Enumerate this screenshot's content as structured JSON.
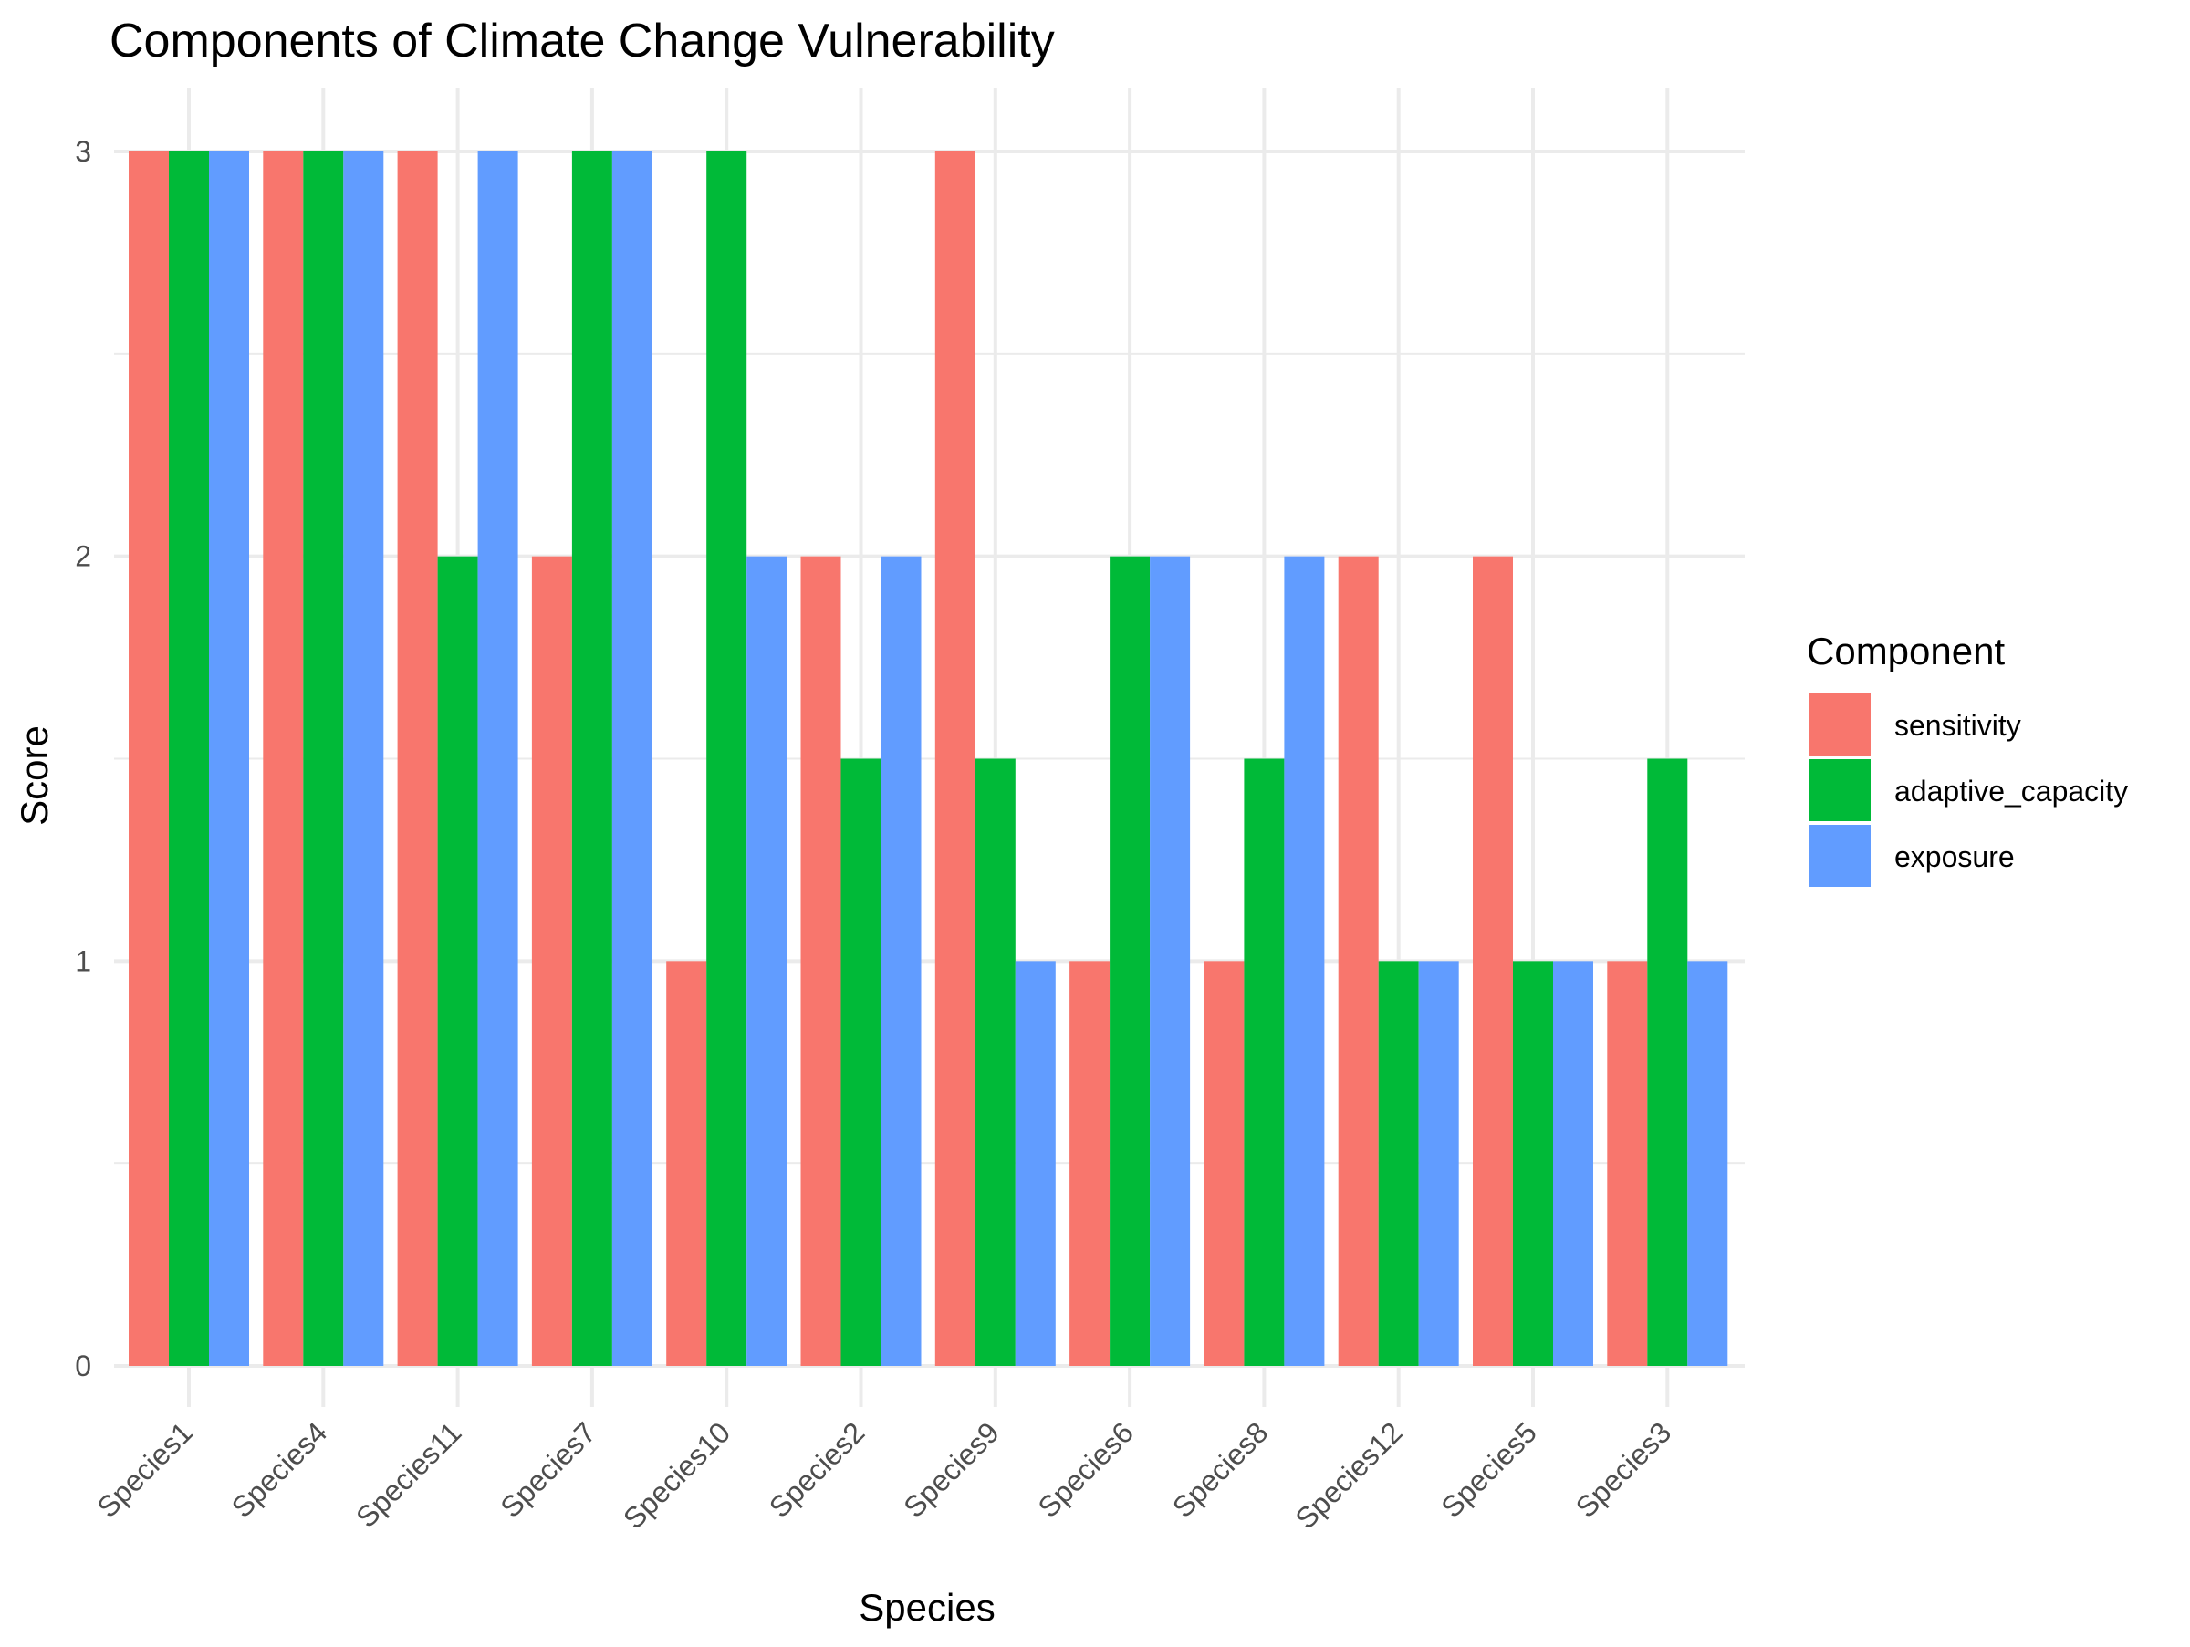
{
  "chart_data": {
    "type": "bar",
    "title": "Components of Climate Change Vulnerability",
    "xlabel": "Species",
    "ylabel": "Score",
    "ylim": [
      0,
      3
    ],
    "yticks": [
      0,
      1,
      2,
      3
    ],
    "grid": true,
    "legend_title": "Component",
    "legend_position": "right",
    "categories": [
      "Species1",
      "Species4",
      "Species11",
      "Species7",
      "Species10",
      "Species2",
      "Species9",
      "Species6",
      "Species8",
      "Species12",
      "Species5",
      "Species3"
    ],
    "series": [
      {
        "name": "sensitivity",
        "color": "#F8766D",
        "values": [
          3,
          3,
          3,
          2,
          1,
          2,
          3,
          1,
          1,
          2,
          2,
          1
        ]
      },
      {
        "name": "adaptive_capacity",
        "color": "#00BA38",
        "values": [
          3,
          3,
          2,
          3,
          3,
          1.5,
          1.5,
          2,
          1.5,
          1,
          1,
          1.5
        ]
      },
      {
        "name": "exposure",
        "color": "#619CFF",
        "values": [
          3,
          3,
          3,
          3,
          2,
          2,
          1,
          2,
          2,
          1,
          1,
          1
        ]
      }
    ]
  }
}
